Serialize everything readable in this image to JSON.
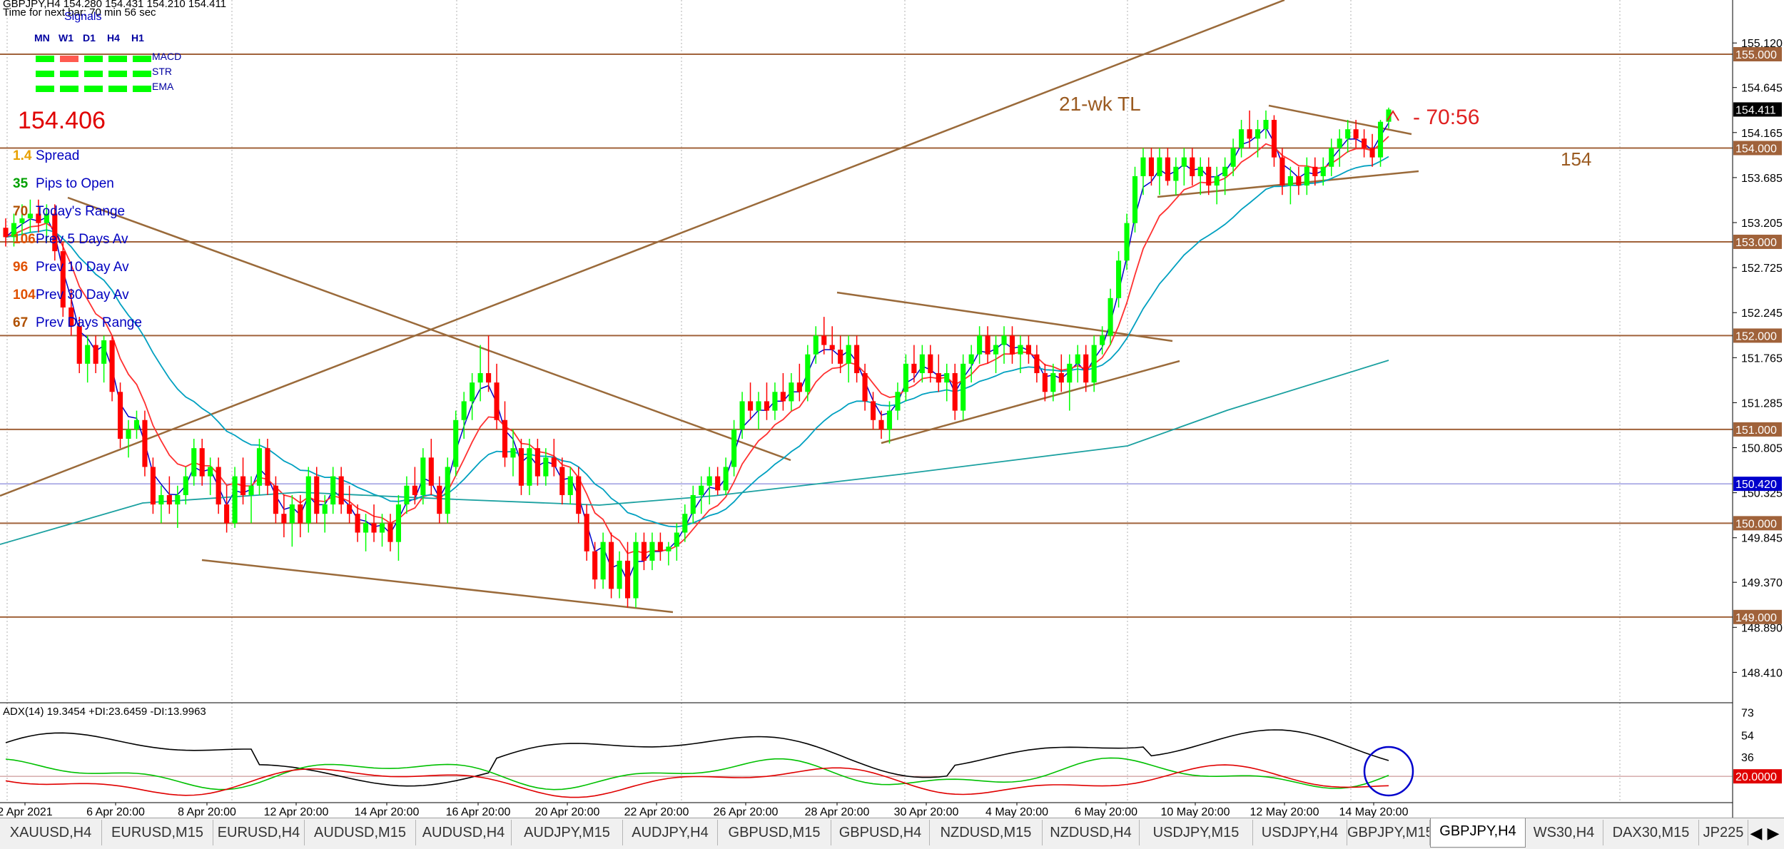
{
  "symbol_header": "GBPJPY,H4  154.280 154.431 154.210 154.411",
  "timer_text": "Time for next bar: 70 min 56 sec",
  "signals": {
    "title": "Signals",
    "timeframes": [
      "MN",
      "W1",
      "D1",
      "H4",
      "H1"
    ],
    "rows": [
      {
        "label": "MACD",
        "colors": [
          "#00ff00",
          "#ff5a50",
          "#00ff00",
          "#00ff00",
          "#00ff00"
        ]
      },
      {
        "label": "STR",
        "colors": [
          "#00ff00",
          "#00ff00",
          "#00ff00",
          "#00ff00",
          "#00ff00"
        ]
      },
      {
        "label": "EMA",
        "colors": [
          "#00ff00",
          "#00ff00",
          "#00ff00",
          "#00ff00",
          "#00ff00"
        ]
      }
    ]
  },
  "current_price": "154.406",
  "stats": [
    {
      "value": "1.4",
      "label": "Spread",
      "color": "#e8a000"
    },
    {
      "value": "35",
      "label": "Pips to Open",
      "color": "#00a000"
    },
    {
      "value": "70",
      "label": "Today's Range",
      "color": "#b05000"
    },
    {
      "value": "106",
      "label": "Prev 5 Days Av",
      "color": "#e05000"
    },
    {
      "value": "96",
      "label": "Prev 10 Day Av",
      "color": "#e05000"
    },
    {
      "value": "104",
      "label": "Prev 30 Day Av",
      "color": "#e05000"
    },
    {
      "value": "67",
      "label": "Prev Days Range",
      "color": "#b05000"
    }
  ],
  "annotations": {
    "trendline_label": "21-wk TL",
    "timer_label": "- 70:56",
    "level_label": "154"
  },
  "indicator_label": "ADX(14) 19.3454 +DI:23.6459 -DI:13.9963",
  "colors": {
    "bull": "#00ff00",
    "bear": "#ff0000",
    "level_line": "#a0623a",
    "trendline": "#9a6a3a",
    "ema_fast": "#0000c8",
    "ema_mid": "#ff3030",
    "ema_slow": "#00a0c0",
    "ema_long": "#1aa0a0",
    "adx_line": "#000000",
    "di_plus": "#00c000",
    "di_minus": "#e00000",
    "current_price_box": "#000000",
    "highlight_price_box": "#0000cc"
  },
  "chart_data": {
    "type": "candlestick",
    "symbol": "GBPJPY",
    "timeframe": "H4",
    "ylim": [
      148.2,
      155.35
    ],
    "y_ticks": [
      "155.120",
      "154.645",
      "154.165",
      "153.685",
      "153.205",
      "152.725",
      "152.245",
      "151.765",
      "151.285",
      "150.805",
      "150.325",
      "149.845",
      "149.370",
      "148.890",
      "148.410"
    ],
    "x_ticks": [
      "2 Apr 2021",
      "6 Apr 20:00",
      "8 Apr 20:00",
      "12 Apr 20:00",
      "14 Apr 20:00",
      "16 Apr 20:00",
      "20 Apr 20:00",
      "22 Apr 20:00",
      "26 Apr 20:00",
      "28 Apr 20:00",
      "30 Apr 20:00",
      "4 May 20:00",
      "6 May 20:00",
      "10 May 20:00",
      "12 May 20:00",
      "14 May 20:00"
    ],
    "levels": [
      {
        "price": 155.0,
        "label": "155.000"
      },
      {
        "price": 154.0,
        "label": "154.000"
      },
      {
        "price": 153.0,
        "label": "153.000"
      },
      {
        "price": 152.0,
        "label": "152.000"
      },
      {
        "price": 151.0,
        "label": "151.000"
      },
      {
        "price": 150.0,
        "label": "150.000"
      },
      {
        "price": 149.0,
        "label": "149.000"
      }
    ],
    "highlight_price": {
      "price": 150.42,
      "label": "150.420"
    },
    "current_price": {
      "price": 154.411,
      "label": "154.411"
    },
    "candles_ohlc": [
      [
        153.15,
        153.25,
        152.95,
        153.05
      ],
      [
        153.05,
        153.3,
        152.95,
        153.2
      ],
      [
        153.2,
        153.4,
        153.05,
        153.25
      ],
      [
        153.25,
        153.45,
        153.1,
        153.3
      ],
      [
        153.3,
        153.45,
        153.1,
        153.2
      ],
      [
        153.2,
        153.4,
        153.0,
        153.3
      ],
      [
        153.3,
        153.4,
        152.8,
        152.9
      ],
      [
        152.9,
        153.0,
        152.2,
        152.3
      ],
      [
        152.3,
        152.5,
        152.0,
        152.1
      ],
      [
        152.1,
        152.2,
        151.6,
        151.7
      ],
      [
        151.7,
        152.0,
        151.5,
        151.9
      ],
      [
        151.9,
        152.0,
        151.6,
        151.7
      ],
      [
        151.7,
        152.0,
        151.5,
        151.95
      ],
      [
        151.95,
        152.0,
        151.3,
        151.4
      ],
      [
        151.4,
        151.5,
        150.8,
        150.9
      ],
      [
        150.9,
        151.1,
        150.7,
        151.0
      ],
      [
        151.0,
        151.2,
        150.9,
        151.1
      ],
      [
        151.1,
        151.2,
        150.5,
        150.6
      ],
      [
        150.6,
        150.7,
        150.1,
        150.2
      ],
      [
        150.2,
        150.4,
        150.0,
        150.3
      ],
      [
        150.3,
        150.5,
        150.1,
        150.2
      ],
      [
        150.2,
        150.4,
        149.95,
        150.3
      ],
      [
        150.3,
        150.6,
        150.2,
        150.5
      ],
      [
        150.5,
        150.9,
        150.4,
        150.8
      ],
      [
        150.8,
        150.9,
        150.4,
        150.5
      ],
      [
        150.5,
        150.7,
        150.3,
        150.6
      ],
      [
        150.6,
        150.7,
        150.1,
        150.2
      ],
      [
        150.2,
        150.4,
        149.9,
        150.0
      ],
      [
        150.0,
        150.6,
        149.95,
        150.5
      ],
      [
        150.5,
        150.7,
        150.2,
        150.3
      ],
      [
        150.3,
        150.5,
        150.0,
        150.4
      ],
      [
        150.4,
        150.9,
        150.3,
        150.8
      ],
      [
        150.8,
        150.9,
        150.3,
        150.4
      ],
      [
        150.4,
        150.5,
        150.0,
        150.1
      ],
      [
        150.1,
        150.3,
        149.85,
        150.0
      ],
      [
        150.0,
        150.3,
        149.75,
        150.2
      ],
      [
        150.2,
        150.3,
        149.85,
        150.0
      ],
      [
        150.0,
        150.6,
        149.9,
        150.5
      ],
      [
        150.5,
        150.6,
        150.0,
        150.1
      ],
      [
        150.1,
        150.3,
        149.9,
        150.2
      ],
      [
        150.2,
        150.6,
        150.1,
        150.5
      ],
      [
        150.5,
        150.6,
        150.1,
        150.2
      ],
      [
        150.2,
        150.4,
        150.0,
        150.1
      ],
      [
        150.1,
        150.2,
        149.8,
        149.9
      ],
      [
        149.9,
        150.1,
        149.7,
        150.0
      ],
      [
        150.0,
        150.2,
        149.8,
        149.9
      ],
      [
        149.9,
        150.1,
        149.75,
        150.0
      ],
      [
        150.0,
        150.1,
        149.7,
        149.8
      ],
      [
        149.8,
        150.3,
        149.6,
        150.2
      ],
      [
        150.2,
        150.5,
        150.1,
        150.4
      ],
      [
        150.4,
        150.6,
        150.2,
        150.3
      ],
      [
        150.3,
        150.8,
        150.2,
        150.7
      ],
      [
        150.7,
        150.9,
        150.3,
        150.4
      ],
      [
        150.4,
        150.5,
        150.0,
        150.1
      ],
      [
        150.1,
        150.7,
        150.0,
        150.6
      ],
      [
        150.6,
        151.2,
        150.5,
        151.1
      ],
      [
        151.1,
        151.4,
        150.9,
        151.3
      ],
      [
        151.3,
        151.6,
        151.1,
        151.5
      ],
      [
        151.5,
        151.9,
        151.3,
        151.6
      ],
      [
        151.6,
        152.0,
        151.4,
        151.5
      ],
      [
        151.5,
        151.7,
        151.0,
        151.1
      ],
      [
        151.1,
        151.3,
        150.6,
        150.7
      ],
      [
        150.7,
        151.0,
        150.5,
        150.8
      ],
      [
        150.8,
        150.9,
        150.3,
        150.4
      ],
      [
        150.4,
        150.9,
        150.3,
        150.8
      ],
      [
        150.8,
        150.9,
        150.4,
        150.5
      ],
      [
        150.5,
        150.8,
        150.4,
        150.7
      ],
      [
        150.7,
        150.9,
        150.5,
        150.6
      ],
      [
        150.6,
        150.7,
        150.2,
        150.3
      ],
      [
        150.3,
        150.6,
        150.2,
        150.5
      ],
      [
        150.5,
        150.6,
        150.0,
        150.1
      ],
      [
        150.1,
        150.2,
        149.6,
        149.7
      ],
      [
        149.7,
        149.8,
        149.3,
        149.4
      ],
      [
        149.4,
        149.9,
        149.3,
        149.8
      ],
      [
        149.8,
        149.9,
        149.2,
        149.3
      ],
      [
        149.3,
        149.7,
        149.2,
        149.6
      ],
      [
        149.6,
        149.8,
        149.1,
        149.2
      ],
      [
        149.2,
        149.9,
        149.1,
        149.8
      ],
      [
        149.8,
        149.9,
        149.5,
        149.6
      ],
      [
        149.6,
        149.9,
        149.5,
        149.8
      ],
      [
        149.8,
        149.9,
        149.6,
        149.7
      ],
      [
        149.7,
        149.8,
        149.55,
        149.75
      ],
      [
        149.75,
        150.0,
        149.6,
        149.9
      ],
      [
        149.9,
        150.2,
        149.8,
        150.1
      ],
      [
        150.1,
        150.4,
        150.0,
        150.3
      ],
      [
        150.3,
        150.5,
        150.1,
        150.4
      ],
      [
        150.4,
        150.6,
        150.2,
        150.5
      ],
      [
        150.5,
        150.6,
        150.3,
        150.35
      ],
      [
        150.35,
        150.7,
        150.3,
        150.6
      ],
      [
        150.6,
        151.1,
        150.5,
        151.0
      ],
      [
        151.0,
        151.4,
        150.9,
        151.3
      ],
      [
        151.3,
        151.5,
        151.1,
        151.2
      ],
      [
        151.2,
        151.4,
        151.0,
        151.3
      ],
      [
        151.3,
        151.5,
        151.1,
        151.2
      ],
      [
        151.2,
        151.5,
        151.1,
        151.4
      ],
      [
        151.4,
        151.6,
        151.2,
        151.3
      ],
      [
        151.3,
        151.6,
        151.2,
        151.5
      ],
      [
        151.5,
        151.7,
        151.3,
        151.4
      ],
      [
        151.4,
        151.9,
        151.3,
        151.8
      ],
      [
        151.8,
        152.1,
        151.7,
        152.0
      ],
      [
        152.0,
        152.2,
        151.8,
        151.9
      ],
      [
        151.9,
        152.1,
        151.7,
        151.85
      ],
      [
        151.85,
        152.0,
        151.6,
        151.7
      ],
      [
        151.7,
        152.0,
        151.5,
        151.9
      ],
      [
        151.9,
        152.0,
        151.5,
        151.6
      ],
      [
        151.6,
        151.7,
        151.2,
        151.3
      ],
      [
        151.3,
        151.4,
        151.0,
        151.1
      ],
      [
        151.1,
        151.2,
        150.9,
        151.0
      ],
      [
        151.0,
        151.3,
        150.85,
        151.2
      ],
      [
        151.2,
        151.5,
        151.1,
        151.4
      ],
      [
        151.4,
        151.8,
        151.3,
        151.7
      ],
      [
        151.7,
        151.9,
        151.5,
        151.6
      ],
      [
        151.6,
        151.9,
        151.5,
        151.8
      ],
      [
        151.8,
        151.9,
        151.5,
        151.6
      ],
      [
        151.6,
        151.8,
        151.4,
        151.5
      ],
      [
        151.5,
        151.7,
        151.3,
        151.6
      ],
      [
        151.6,
        151.7,
        151.1,
        151.2
      ],
      [
        151.2,
        151.8,
        151.1,
        151.7
      ],
      [
        151.7,
        151.9,
        151.5,
        151.8
      ],
      [
        151.8,
        152.1,
        151.7,
        152.0
      ],
      [
        152.0,
        152.1,
        151.7,
        151.8
      ],
      [
        151.8,
        152.0,
        151.6,
        151.9
      ],
      [
        151.9,
        152.1,
        151.7,
        152.0
      ],
      [
        152.0,
        152.1,
        151.7,
        151.8
      ],
      [
        151.8,
        152.0,
        151.6,
        151.9
      ],
      [
        151.9,
        152.0,
        151.7,
        151.8
      ],
      [
        151.8,
        151.9,
        151.5,
        151.6
      ],
      [
        151.6,
        151.7,
        151.3,
        151.4
      ],
      [
        151.4,
        151.7,
        151.3,
        151.6
      ],
      [
        151.6,
        151.8,
        151.4,
        151.5
      ],
      [
        151.5,
        151.8,
        151.2,
        151.7
      ],
      [
        151.7,
        151.9,
        151.5,
        151.8
      ],
      [
        151.8,
        151.9,
        151.4,
        151.5
      ],
      [
        151.5,
        152.0,
        151.4,
        151.9
      ],
      [
        151.9,
        152.1,
        151.8,
        152.0
      ],
      [
        152.0,
        152.5,
        151.9,
        152.4
      ],
      [
        152.4,
        152.9,
        152.3,
        152.8
      ],
      [
        152.8,
        153.3,
        152.7,
        153.2
      ],
      [
        153.2,
        153.8,
        153.1,
        153.7
      ],
      [
        153.7,
        154.0,
        153.5,
        153.9
      ],
      [
        153.9,
        154.0,
        153.6,
        153.7
      ],
      [
        153.7,
        154.0,
        153.5,
        153.9
      ],
      [
        153.9,
        154.0,
        153.6,
        153.65
      ],
      [
        153.65,
        153.9,
        153.5,
        153.8
      ],
      [
        153.8,
        154.0,
        153.6,
        153.9
      ],
      [
        153.9,
        154.0,
        153.6,
        153.7
      ],
      [
        153.7,
        153.9,
        153.5,
        153.8
      ],
      [
        153.8,
        153.9,
        153.5,
        153.6
      ],
      [
        153.6,
        153.8,
        153.4,
        153.7
      ],
      [
        153.7,
        153.9,
        153.5,
        153.8
      ],
      [
        153.8,
        154.1,
        153.7,
        154.0
      ],
      [
        154.0,
        154.3,
        153.9,
        154.2
      ],
      [
        154.2,
        154.4,
        154.0,
        154.1
      ],
      [
        154.1,
        154.3,
        153.9,
        154.2
      ],
      [
        154.2,
        154.4,
        154.1,
        154.3
      ],
      [
        154.3,
        154.35,
        153.8,
        153.9
      ],
      [
        153.9,
        154.0,
        153.5,
        153.6
      ],
      [
        153.6,
        153.8,
        153.4,
        153.7
      ],
      [
        153.7,
        153.8,
        153.5,
        153.6
      ],
      [
        153.6,
        153.9,
        153.5,
        153.8
      ],
      [
        153.8,
        153.9,
        153.6,
        153.7
      ],
      [
        153.7,
        153.9,
        153.6,
        153.8
      ],
      [
        153.8,
        154.1,
        153.7,
        154.0
      ],
      [
        154.0,
        154.2,
        153.8,
        154.1
      ],
      [
        154.1,
        154.3,
        153.95,
        154.2
      ],
      [
        154.2,
        154.3,
        154.0,
        154.1
      ],
      [
        154.1,
        154.2,
        153.9,
        154.0
      ],
      [
        154.0,
        154.15,
        153.8,
        153.9
      ],
      [
        153.9,
        154.3,
        153.8,
        154.28
      ],
      [
        154.28,
        154.431,
        154.21,
        154.411
      ]
    ]
  }
}
